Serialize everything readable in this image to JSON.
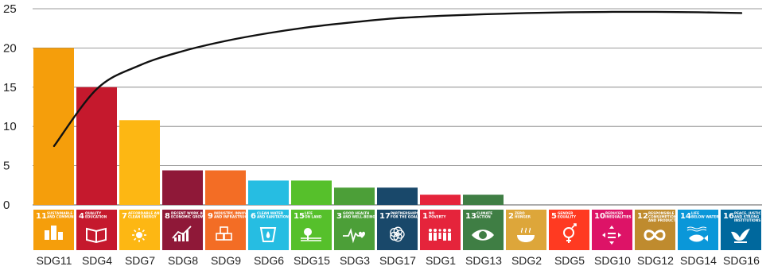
{
  "chart_data": {
    "type": "bar",
    "categories": [
      "SDG11",
      "SDG4",
      "SDG7",
      "SDG8",
      "SDG9",
      "SDG6",
      "SDG15",
      "SDG3",
      "SDG17",
      "SDG1",
      "SDG13",
      "SDG2",
      "SDG5",
      "SDG10",
      "SDG12",
      "SDG14",
      "SDG16"
    ],
    "values": [
      20,
      15,
      10.8,
      4.4,
      4.4,
      3.1,
      3.1,
      2.2,
      2.2,
      1.3,
      1.3,
      0,
      0,
      0,
      0,
      0,
      0
    ],
    "bar_colors": [
      "#F59E0B",
      "#C5192D",
      "#FDB713",
      "#8F1838",
      "#F36D25",
      "#26BDE2",
      "#56C02B",
      "#4C9F38",
      "#19486A",
      "#E5243B",
      "#3F7E44",
      "#DDA63A",
      "#FF3A21",
      "#DD1367",
      "#BF8B2E",
      "#0A97D9",
      "#00689D"
    ],
    "line": {
      "type": "cumulative-curve",
      "values": [
        7.5,
        14.8,
        17.8,
        19.6,
        20.9,
        21.9,
        22.7,
        23.3,
        23.8,
        24.1,
        24.3,
        24.45,
        24.55,
        24.6,
        24.6,
        24.55,
        24.45
      ]
    },
    "ylim": [
      0,
      25
    ],
    "yticks": [
      0,
      5,
      10,
      15,
      20,
      25
    ],
    "grid": "horizontal",
    "title": "",
    "xlabel": "",
    "ylabel": "",
    "icons": [
      {
        "num": "11",
        "lines": [
          "SUSTAINABLE CITIES",
          "AND COMMUNITIES"
        ],
        "glyph": "city-icon"
      },
      {
        "num": "4",
        "lines": [
          "QUALITY",
          "EDUCATION"
        ],
        "glyph": "book-icon"
      },
      {
        "num": "7",
        "lines": [
          "AFFORDABLE AND",
          "CLEAN ENERGY"
        ],
        "glyph": "sun-icon"
      },
      {
        "num": "8",
        "lines": [
          "DECENT WORK AND",
          "ECONOMIC GROWTH"
        ],
        "glyph": "growth-icon"
      },
      {
        "num": "9",
        "lines": [
          "INDUSTRY, INNOVATION",
          "AND INFRASTRUCTURE"
        ],
        "glyph": "cubes-icon"
      },
      {
        "num": "6",
        "lines": [
          "CLEAN WATER",
          "AND SANITATION"
        ],
        "glyph": "water-icon"
      },
      {
        "num": "15",
        "lines": [
          "LIFE",
          "ON LAND"
        ],
        "glyph": "tree-icon"
      },
      {
        "num": "3",
        "lines": [
          "GOOD HEALTH",
          "AND WELL-BEING"
        ],
        "glyph": "heartbeat-icon"
      },
      {
        "num": "17",
        "lines": [
          "PARTNERSHIPS",
          "FOR THE GOALS"
        ],
        "glyph": "rings-icon"
      },
      {
        "num": "1",
        "lines": [
          "NO",
          "POVERTY"
        ],
        "glyph": "family-icon"
      },
      {
        "num": "13",
        "lines": [
          "CLIMATE",
          "ACTION"
        ],
        "glyph": "eye-globe-icon"
      },
      {
        "num": "2",
        "lines": [
          "ZERO",
          "HUNGER"
        ],
        "glyph": "bowl-icon"
      },
      {
        "num": "5",
        "lines": [
          "GENDER",
          "EQUALITY"
        ],
        "glyph": "gender-icon"
      },
      {
        "num": "10",
        "lines": [
          "REDUCED",
          "INEQUALITIES"
        ],
        "glyph": "equality-icon"
      },
      {
        "num": "12",
        "lines": [
          "RESPONSIBLE",
          "CONSUMPTION",
          "AND PRODUCTION"
        ],
        "glyph": "infinity-icon"
      },
      {
        "num": "14",
        "lines": [
          "LIFE",
          "BELOW WATER"
        ],
        "glyph": "fish-icon"
      },
      {
        "num": "16",
        "lines": [
          "PEACE, JUSTICE",
          "AND STRONG",
          "INSTITUTIONS"
        ],
        "glyph": "dove-icon"
      }
    ]
  }
}
